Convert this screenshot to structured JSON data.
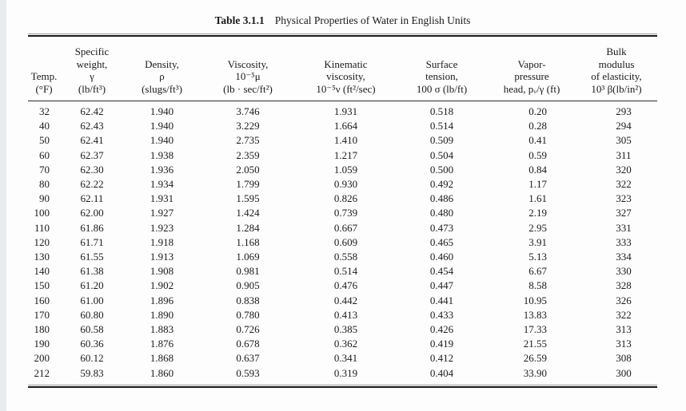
{
  "caption": {
    "label": "Table 3.1.1",
    "title": "Physical Properties of Water in English Units"
  },
  "table": {
    "column_keys": [
      "temp",
      "specific-weight",
      "density",
      "viscosity",
      "kinematic-viscosity",
      "surface-tension",
      "vapor-pressure-head",
      "bulk-modulus"
    ],
    "headers": [
      "Temp.\n(°F)",
      "Specific\nweight,\nγ\n(lb/ft³)",
      "Density,\nρ\n(slugs/ft³)",
      "Viscosity,\n10⁻⁵μ\n(lb · sec/ft²)",
      "Kinematic\nviscosity,\n10⁻⁵ν (ft²/sec)",
      "Surface\ntension,\n100 σ (lb/ft)",
      "Vapor-\npressure\nhead, pᵥ/γ (ft)",
      "Bulk\nmodulus\nof elasticity,\n10³ β(lb/in²)"
    ],
    "rows": [
      [
        "32",
        "62.42",
        "1.940",
        "3.746",
        "1.931",
        "0.518",
        "0.20",
        "293"
      ],
      [
        "40",
        "62.43",
        "1.940",
        "3.229",
        "1.664",
        "0.514",
        "0.28",
        "294"
      ],
      [
        "50",
        "62.41",
        "1.940",
        "2.735",
        "1.410",
        "0.509",
        "0.41",
        "305"
      ],
      [
        "60",
        "62.37",
        "1.938",
        "2.359",
        "1.217",
        "0.504",
        "0.59",
        "311"
      ],
      [
        "70",
        "62.30",
        "1.936",
        "2.050",
        "1.059",
        "0.500",
        "0.84",
        "320"
      ],
      [
        "80",
        "62.22",
        "1.934",
        "1.799",
        "0.930",
        "0.492",
        "1.17",
        "322"
      ],
      [
        "90",
        "62.11",
        "1.931",
        "1.595",
        "0.826",
        "0.486",
        "1.61",
        "323"
      ],
      [
        "100",
        "62.00",
        "1.927",
        "1.424",
        "0.739",
        "0.480",
        "2.19",
        "327"
      ],
      [
        "110",
        "61.86",
        "1.923",
        "1.284",
        "0.667",
        "0.473",
        "2.95",
        "331"
      ],
      [
        "120",
        "61.71",
        "1.918",
        "1.168",
        "0.609",
        "0.465",
        "3.91",
        "333"
      ],
      [
        "130",
        "61.55",
        "1.913",
        "1.069",
        "0.558",
        "0.460",
        "5.13",
        "334"
      ],
      [
        "140",
        "61.38",
        "1.908",
        "0.981",
        "0.514",
        "0.454",
        "6.67",
        "330"
      ],
      [
        "150",
        "61.20",
        "1.902",
        "0.905",
        "0.476",
        "0.447",
        "8.58",
        "328"
      ],
      [
        "160",
        "61.00",
        "1.896",
        "0.838",
        "0.442",
        "0.441",
        "10.95",
        "326"
      ],
      [
        "170",
        "60.80",
        "1.890",
        "0.780",
        "0.413",
        "0.433",
        "13.83",
        "322"
      ],
      [
        "180",
        "60.58",
        "1.883",
        "0.726",
        "0.385",
        "0.426",
        "17.33",
        "313"
      ],
      [
        "190",
        "60.36",
        "1.876",
        "0.678",
        "0.362",
        "0.419",
        "21.55",
        "313"
      ],
      [
        "200",
        "60.12",
        "1.868",
        "0.637",
        "0.341",
        "0.412",
        "26.59",
        "308"
      ],
      [
        "212",
        "59.83",
        "1.860",
        "0.593",
        "0.319",
        "0.404",
        "33.90",
        "300"
      ]
    ]
  }
}
